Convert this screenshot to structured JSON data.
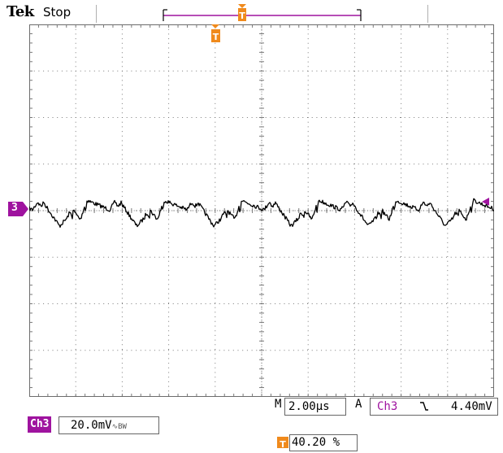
{
  "header": {
    "brand": "Tek",
    "run_state": "Stop"
  },
  "record_bar": {
    "trigger_marker": "T"
  },
  "screen": {
    "trigger_marker": "T",
    "channel_marker": "3"
  },
  "readouts": {
    "channel_label": "Ch3",
    "channel_scale": "20.0mV",
    "bandwidth_symbol": "∿",
    "bandwidth_text": "BW",
    "timebase_prefix": "M",
    "timebase_value": "2.00µs",
    "acq_mode": "A",
    "trigger_source": "Ch3",
    "trigger_slope": "↘",
    "trigger_level": "4.40mV",
    "trigger_position": "40.20 %",
    "trigger_pos_icon": "T"
  },
  "colors": {
    "channel": "#9f139f",
    "trigger": "#f08a1c",
    "grid": "#7a7a7a",
    "trace": "#000000"
  },
  "icons": {
    "trigger_marker": "trigger-position-icon",
    "channel_marker": "channel-ground-marker-icon",
    "level_marker": "trigger-level-arrow-icon",
    "slope": "falling-edge-slope-icon"
  }
}
